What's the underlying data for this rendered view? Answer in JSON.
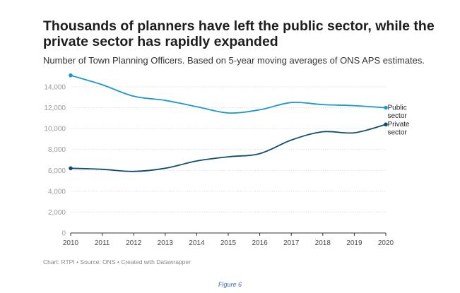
{
  "title": "Thousands of planners have left the public sector, while the private sector has rapidly expanded",
  "subtitle": "Number of Town Planning Officers. Based on 5-year moving averages of ONS APS estimates.",
  "footer": "Chart: RTPI • Source: ONS • Created with Datawrapper",
  "caption": "Figure 6",
  "chart_data": {
    "type": "line",
    "title": "Thousands of planners have left the public sector, while the private sector has rapidly expanded",
    "subtitle": "Number of Town Planning Officers. Based on 5-year moving averages of ONS APS estimates.",
    "x": [
      2010,
      2011,
      2012,
      2013,
      2014,
      2015,
      2016,
      2017,
      2018,
      2019,
      2020
    ],
    "xlabel": "",
    "ylabel": "",
    "ylim": [
      0,
      14000
    ],
    "yticks": [
      0,
      2000,
      4000,
      6000,
      8000,
      10000,
      12000,
      14000
    ],
    "ytick_labels": [
      "0",
      "2,000",
      "4,000",
      "6,000",
      "8,000",
      "10,000",
      "12,000",
      "14,000"
    ],
    "grid": true,
    "legend": "labels at line ends (right)",
    "series": [
      {
        "name": "Public sector",
        "label_lines": [
          "Public",
          "sector"
        ],
        "color": "#1a9ac9",
        "values": [
          15100,
          14200,
          13100,
          12700,
          12100,
          11500,
          11800,
          12500,
          12300,
          12200,
          12000
        ]
      },
      {
        "name": "Private sector",
        "label_lines": [
          "Private",
          "sector"
        ],
        "color": "#0f4f6e",
        "values": [
          6200,
          6100,
          5900,
          6200,
          6900,
          7300,
          7600,
          8900,
          9700,
          9600,
          10400
        ]
      }
    ]
  }
}
